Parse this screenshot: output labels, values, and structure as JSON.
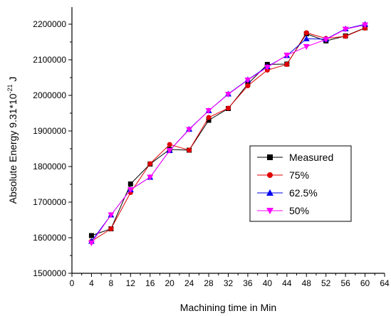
{
  "chart_data": {
    "type": "line",
    "xlabel": "Machining time in Min",
    "ylabel_main": "Absolute Energy 9.31*10",
    "ylabel_exp": "-21",
    "ylabel_unit": " J",
    "xlim": [
      0,
      64
    ],
    "ylim": [
      1500000,
      2200000
    ],
    "x_ticks": [
      "0",
      "4",
      "8",
      "12",
      "16",
      "20",
      "24",
      "28",
      "32",
      "36",
      "40",
      "44",
      "48",
      "52",
      "56",
      "60",
      "64"
    ],
    "y_ticks": [
      "1500000",
      "1600000",
      "1700000",
      "1800000",
      "1900000",
      "2000000",
      "2100000",
      "2200000"
    ],
    "grid": false,
    "legend_position": "center-right",
    "x": [
      4,
      8,
      12,
      16,
      20,
      24,
      28,
      32,
      36,
      40,
      44,
      48,
      52,
      56,
      60
    ],
    "series": [
      {
        "name": "Measured",
        "color": "#000000",
        "marker": "square",
        "values": [
          1606000,
          1625000,
          1751000,
          1807000,
          1848000,
          1846000,
          1930000,
          1963000,
          2032000,
          2087000,
          2088000,
          2173000,
          2153000,
          2167000,
          2190000
        ]
      },
      {
        "name": "75%",
        "color": "#e00000",
        "marker": "circle",
        "values": [
          1590000,
          1625000,
          1727000,
          1808000,
          1862000,
          1846000,
          1938000,
          1964000,
          2027000,
          2071000,
          2087000,
          2176000,
          2160000,
          2166000,
          2189000
        ]
      },
      {
        "name": "62.5%",
        "color": "#0000ee",
        "marker": "triangle-up",
        "values": [
          1590000,
          1664000,
          1735000,
          1770000,
          1845000,
          1905000,
          1957000,
          2004000,
          2044000,
          2081000,
          2112000,
          2159000,
          2158000,
          2187000,
          2200000
        ]
      },
      {
        "name": "50%",
        "color": "#ff00ff",
        "marker": "triangle-down",
        "values": [
          1585000,
          1664000,
          1735000,
          1770000,
          1845000,
          1904000,
          1957000,
          2003000,
          2043000,
          2079000,
          2113000,
          2137000,
          2157000,
          2186000,
          2198000
        ]
      }
    ]
  }
}
